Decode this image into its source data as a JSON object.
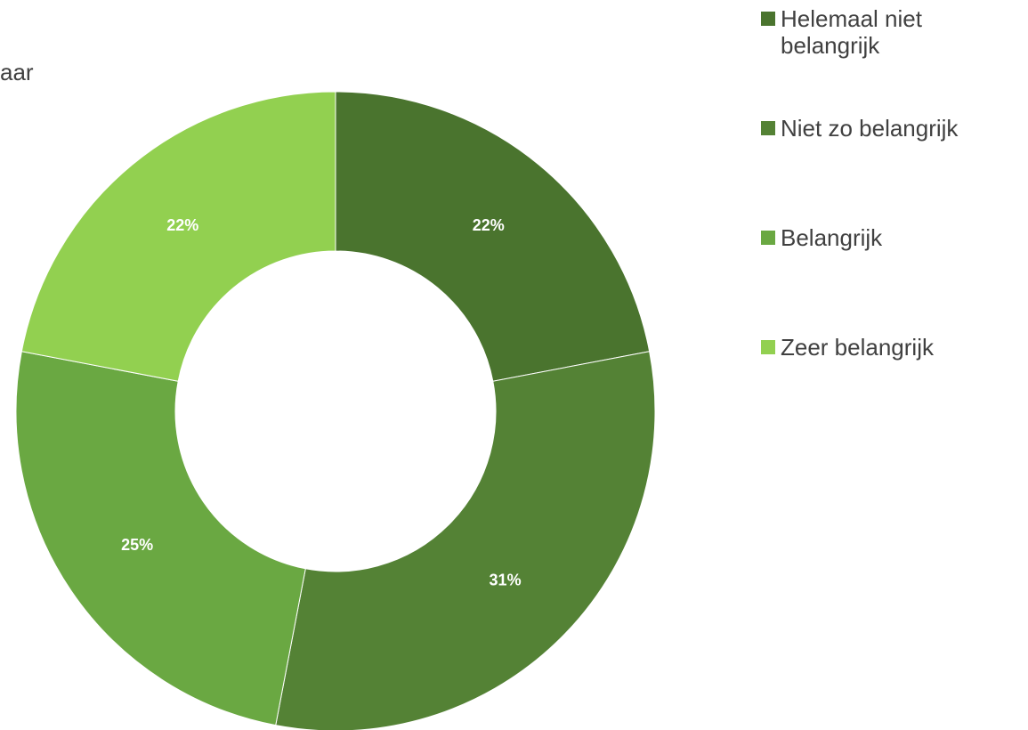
{
  "chart_data": {
    "type": "donut",
    "title": "aar",
    "categories": [
      "Helemaal niet belangrijk",
      "Niet zo belangrijk",
      "Belangrijk",
      "Zeer belangrijk"
    ],
    "values": [
      22,
      31,
      25,
      22
    ],
    "value_labels": [
      "22%",
      "31%",
      "25%",
      "22%"
    ],
    "colors": [
      "#4a742e",
      "#548235",
      "#6aa842",
      "#92d050"
    ],
    "legend": "right"
  }
}
